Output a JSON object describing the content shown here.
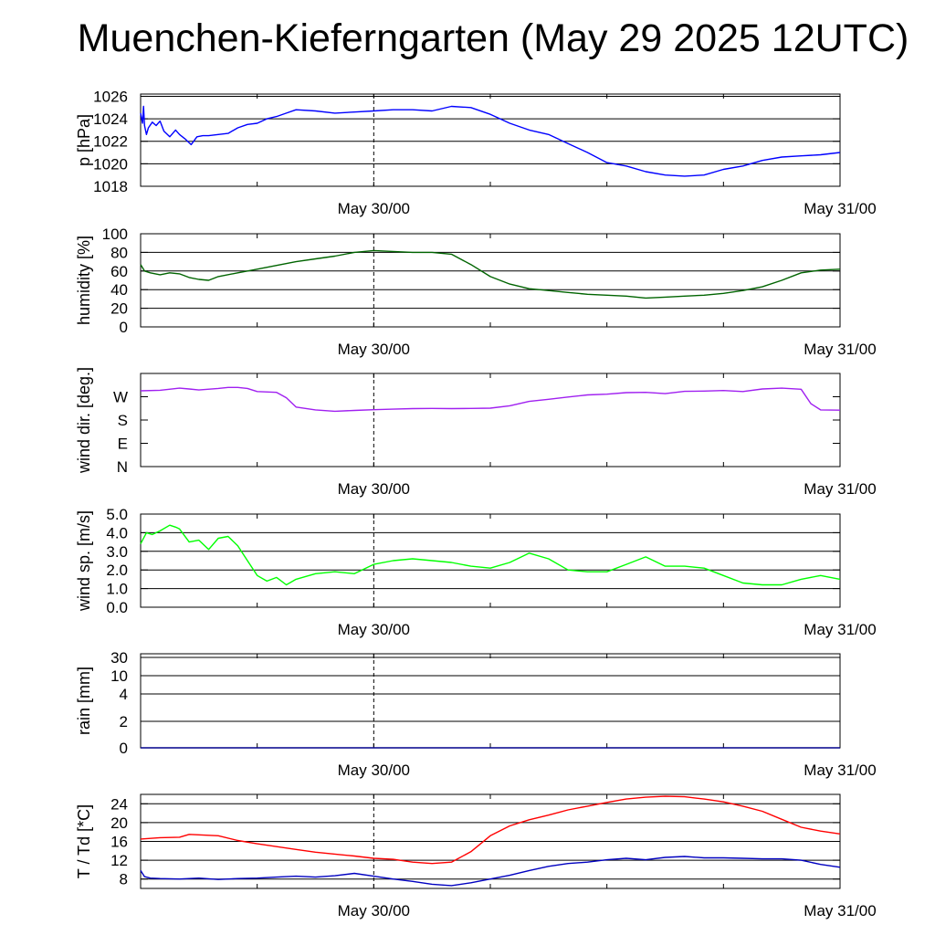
{
  "title": "Muenchen-Kieferngarten (May 29 2025 12UTC)",
  "colors": {
    "pressure": "#0000ff",
    "humidity": "#006400",
    "wind_dir": "#a020f0",
    "wind_speed": "#00ff00",
    "rain": "#00008b",
    "temperature": "#ff0000",
    "dewpoint": "#0000c0",
    "grid": "#000000"
  },
  "chart_data": [
    {
      "type": "line",
      "ylabel": "p [hPa]",
      "x_ticks": [
        "May 30/00",
        "May 31/00"
      ],
      "x_tick_hours": [
        12,
        36
      ],
      "x_range_hours": [
        0,
        36
      ],
      "marker_hours": 12,
      "ylim": [
        1018,
        1026.2
      ],
      "yticks": [
        1018,
        1020,
        1022,
        1024,
        1026
      ],
      "ytick_labels": [
        "1018",
        "1020",
        "1022",
        "1024",
        "1026"
      ],
      "grid_values": [
        1020,
        1022,
        1024,
        1026
      ],
      "series": [
        {
          "color_key": "pressure",
          "x": [
            0,
            0.1,
            0.15,
            0.2,
            0.3,
            0.4,
            0.6,
            0.8,
            1,
            1.2,
            1.5,
            1.8,
            2,
            2.3,
            2.6,
            2.9,
            3.2,
            3.5,
            4,
            4.5,
            5,
            5.5,
            6,
            6.5,
            7,
            7.5,
            8,
            9,
            10,
            11,
            12,
            13,
            14,
            15,
            16,
            17,
            18,
            19,
            20,
            21,
            22,
            23,
            24,
            25,
            26,
            27,
            28,
            29,
            30,
            31,
            32,
            33,
            34,
            35,
            36
          ],
          "values": [
            1024.5,
            1023.6,
            1025.1,
            1023.4,
            1022.6,
            1023.2,
            1023.7,
            1023.4,
            1023.8,
            1022.9,
            1022.4,
            1023.0,
            1022.6,
            1022.2,
            1021.7,
            1022.4,
            1022.5,
            1022.5,
            1022.6,
            1022.7,
            1023.2,
            1023.5,
            1023.6,
            1024.0,
            1024.2,
            1024.5,
            1024.8,
            1024.7,
            1024.5,
            1024.6,
            1024.7,
            1024.8,
            1024.8,
            1024.7,
            1025.1,
            1025.0,
            1024.4,
            1023.6,
            1023.0,
            1022.6,
            1021.8,
            1021.0,
            1020.1,
            1019.8,
            1019.3,
            1019.0,
            1018.9,
            1019.0,
            1019.5,
            1019.8,
            1020.3,
            1020.6,
            1020.7,
            1020.8,
            1021.0
          ]
        }
      ]
    },
    {
      "type": "line",
      "ylabel": "humidity [%]",
      "x_ticks": [
        "May 30/00",
        "May 31/00"
      ],
      "x_tick_hours": [
        12,
        36
      ],
      "x_range_hours": [
        0,
        36
      ],
      "marker_hours": 12,
      "ylim": [
        0,
        100
      ],
      "yticks": [
        0,
        20,
        40,
        60,
        80,
        100
      ],
      "ytick_labels": [
        "0",
        "20",
        "40",
        "60",
        "80",
        "100"
      ],
      "grid_values": [
        20,
        40,
        60,
        80,
        100
      ],
      "series": [
        {
          "color_key": "humidity",
          "x": [
            0,
            0.2,
            0.5,
            1,
            1.5,
            2,
            2.5,
            3,
            3.5,
            4,
            5,
            6,
            7,
            8,
            9,
            10,
            11,
            12,
            13,
            14,
            15,
            16,
            17,
            18,
            19,
            20,
            21,
            22,
            23,
            24,
            25,
            26,
            27,
            28,
            29,
            30,
            31,
            32,
            33,
            34,
            35,
            36
          ],
          "values": [
            67,
            60,
            58,
            56,
            58,
            57,
            53,
            51,
            50,
            54,
            58,
            62,
            66,
            70,
            73,
            76,
            80,
            82,
            81,
            80,
            80,
            78,
            67,
            54,
            46,
            41,
            39,
            37,
            35,
            34,
            33,
            31,
            32,
            33,
            34,
            36,
            39,
            43,
            50,
            58,
            61,
            62
          ]
        }
      ]
    },
    {
      "type": "line",
      "ylabel": "wind dir. [deg.]",
      "x_ticks": [
        "May 30/00",
        "May 31/00"
      ],
      "x_tick_hours": [
        12,
        36
      ],
      "x_range_hours": [
        0,
        36
      ],
      "marker_hours": 12,
      "ylim": [
        0,
        360
      ],
      "yticks": [
        0,
        90,
        180,
        270
      ],
      "ytick_labels": [
        "N",
        "E",
        "S",
        "W"
      ],
      "grid_values": [],
      "series": [
        {
          "color_key": "wind_dir",
          "x": [
            0,
            1,
            2,
            2.5,
            3,
            4,
            4.5,
            5,
            5.5,
            6,
            7,
            7.5,
            8,
            9,
            10,
            11,
            12,
            13,
            14,
            15,
            16,
            17,
            18,
            19,
            20,
            21,
            22,
            23,
            24,
            25,
            26,
            27,
            28,
            29,
            30,
            31,
            32,
            33,
            34,
            34.5,
            35,
            36
          ],
          "values": [
            293,
            295,
            303,
            300,
            296,
            302,
            306,
            306,
            302,
            290,
            287,
            266,
            230,
            219,
            214,
            217,
            220,
            222,
            224,
            225,
            224,
            225,
            226,
            235,
            252,
            260,
            269,
            277,
            280,
            286,
            287,
            282,
            291,
            292,
            294,
            290,
            300,
            303,
            299,
            243,
            219,
            218
          ]
        }
      ]
    },
    {
      "type": "line",
      "ylabel": "wind sp. [m/s]",
      "x_ticks": [
        "May 30/00",
        "May 31/00"
      ],
      "x_tick_hours": [
        12,
        36
      ],
      "x_range_hours": [
        0,
        36
      ],
      "marker_hours": 12,
      "ylim": [
        0,
        5
      ],
      "yticks": [
        0,
        1,
        2,
        3,
        4,
        5
      ],
      "ytick_labels": [
        "0.0",
        "1.0",
        "2.0",
        "3.0",
        "4.0",
        "5.0"
      ],
      "grid_values": [
        1,
        2,
        3,
        4,
        5
      ],
      "series": [
        {
          "color_key": "wind_speed",
          "x": [
            0,
            0.3,
            0.6,
            1,
            1.5,
            1.8,
            2,
            2.5,
            3,
            3.5,
            4,
            4.5,
            5,
            5.5,
            6,
            6.5,
            7,
            7.5,
            8,
            9,
            10,
            11,
            12,
            13,
            14,
            15,
            16,
            17,
            18,
            19,
            20,
            21,
            22,
            23,
            24,
            25,
            26,
            27,
            28,
            29,
            30,
            31,
            32,
            33,
            34,
            35,
            36
          ],
          "values": [
            3.4,
            4.0,
            3.9,
            4.1,
            4.4,
            4.3,
            4.2,
            3.5,
            3.6,
            3.1,
            3.7,
            3.8,
            3.3,
            2.5,
            1.7,
            1.4,
            1.6,
            1.2,
            1.5,
            1.8,
            1.9,
            1.8,
            2.3,
            2.5,
            2.6,
            2.5,
            2.4,
            2.2,
            2.1,
            2.4,
            2.9,
            2.6,
            2.0,
            1.9,
            1.9,
            2.3,
            2.7,
            2.2,
            2.2,
            2.1,
            1.7,
            1.3,
            1.2,
            1.2,
            1.5,
            1.7,
            1.5
          ]
        }
      ]
    },
    {
      "type": "line",
      "ylabel": "rain [mm]",
      "x_ticks": [
        "May 30/00",
        "May 31/00"
      ],
      "x_tick_hours": [
        12,
        36
      ],
      "x_range_hours": [
        0,
        36
      ],
      "marker_hours": 12,
      "scale": "nonlinear",
      "yticks": [
        0,
        2,
        4,
        10,
        30
      ],
      "ytick_labels": [
        "0",
        "2",
        "4",
        "10",
        "30"
      ],
      "grid_values": [
        2,
        4,
        10,
        30
      ],
      "series": [
        {
          "color_key": "rain",
          "x": [
            0,
            36
          ],
          "values": [
            0,
            0
          ]
        }
      ]
    },
    {
      "type": "line",
      "ylabel": "T / Td [*C]",
      "x_ticks": [
        "May 30/00",
        "May 31/00"
      ],
      "x_tick_hours": [
        12,
        36
      ],
      "x_range_hours": [
        0,
        36
      ],
      "marker_hours": 12,
      "ylim": [
        6,
        26
      ],
      "yticks": [
        8,
        12,
        16,
        20,
        24
      ],
      "ytick_labels": [
        "8",
        "12",
        "16",
        "20",
        "24"
      ],
      "grid_values": [
        8,
        12,
        16,
        20,
        24
      ],
      "series": [
        {
          "color_key": "temperature",
          "x": [
            0,
            1,
            2,
            2.5,
            3,
            4,
            5,
            6,
            7,
            8,
            9,
            10,
            11,
            12,
            13,
            14,
            15,
            16,
            17,
            18,
            19,
            20,
            21,
            22,
            23,
            24,
            25,
            26,
            27,
            28,
            29,
            30,
            31,
            32,
            33,
            34,
            35,
            36
          ],
          "values": [
            16.5,
            16.8,
            16.9,
            17.5,
            17.4,
            17.2,
            16.2,
            15.5,
            14.9,
            14.3,
            13.7,
            13.3,
            12.9,
            12.4,
            12.2,
            11.6,
            11.3,
            11.6,
            13.8,
            17.2,
            19.3,
            20.6,
            21.6,
            22.7,
            23.5,
            24.3,
            25.0,
            25.4,
            25.6,
            25.5,
            25.0,
            24.4,
            23.5,
            22.4,
            20.7,
            19.0,
            18.2,
            17.6
          ]
        },
        {
          "color_key": "dewpoint",
          "x": [
            0,
            0.2,
            0.5,
            1,
            2,
            3,
            4,
            5,
            6,
            7,
            8,
            9,
            10,
            11,
            12,
            13,
            14,
            15,
            16,
            17,
            18,
            19,
            20,
            21,
            22,
            23,
            24,
            25,
            26,
            27,
            28,
            29,
            30,
            31,
            32,
            33,
            34,
            35,
            36
          ],
          "values": [
            9.8,
            8.5,
            8.2,
            8.1,
            8.0,
            8.2,
            7.9,
            8.1,
            8.2,
            8.4,
            8.6,
            8.4,
            8.7,
            9.2,
            8.6,
            8.0,
            7.5,
            6.9,
            6.6,
            7.2,
            8.0,
            8.8,
            9.8,
            10.7,
            11.3,
            11.6,
            12.1,
            12.4,
            12.1,
            12.6,
            12.8,
            12.5,
            12.5,
            12.4,
            12.3,
            12.3,
            12.0,
            11.1,
            10.5
          ]
        }
      ]
    }
  ]
}
